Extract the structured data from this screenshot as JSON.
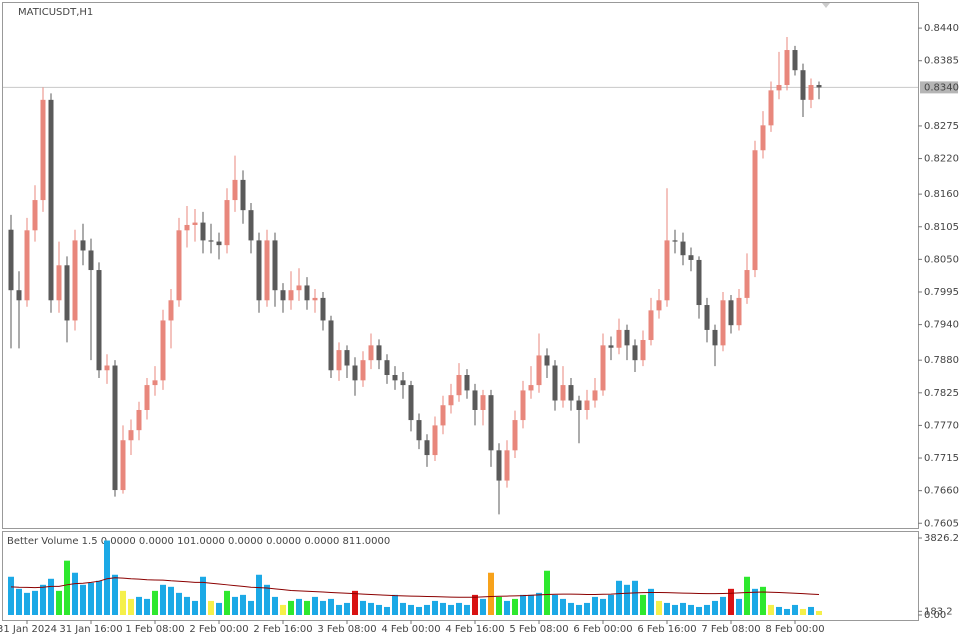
{
  "chart_data": [
    {
      "type": "candlestick",
      "title": "MATICUSDT,H1",
      "categories": [
        null,
        null,
        "31 Jan 2024",
        null,
        null,
        null,
        null,
        null,
        null,
        null,
        "31 Jan 16:00",
        null,
        null,
        null,
        null,
        null,
        null,
        null,
        "1 Feb 08:00",
        null,
        null,
        null,
        null,
        null,
        null,
        null,
        "2 Feb 00:00",
        null,
        null,
        null,
        null,
        null,
        null,
        null,
        "2 Feb 16:00",
        null,
        null,
        null,
        null,
        null,
        null,
        null,
        "3 Feb 08:00",
        null,
        null,
        null,
        null,
        null,
        null,
        null,
        "4 Feb 00:00",
        null,
        null,
        null,
        null,
        null,
        null,
        null,
        "4 Feb 16:00",
        null,
        null,
        null,
        null,
        null,
        null,
        null,
        "5 Feb 08:00",
        null,
        null,
        null,
        null,
        null,
        null,
        null,
        "6 Feb 00:00",
        null,
        null,
        null,
        null,
        null,
        null,
        null,
        "6 Feb 16:00",
        null,
        null,
        null,
        null,
        null,
        null,
        null,
        "7 Feb 08:00",
        null,
        null,
        null,
        null,
        null,
        null,
        null,
        "8 Feb 00:00",
        null,
        null,
        null
      ],
      "ohlc": [
        [
          0.81,
          0.8125,
          0.79,
          0.7998
        ],
        [
          0.7998,
          0.803,
          0.79,
          0.7981
        ],
        [
          0.7981,
          0.812,
          0.797,
          0.8099
        ],
        [
          0.8099,
          0.8175,
          0.808,
          0.815
        ],
        [
          0.815,
          0.834,
          0.813,
          0.8319
        ],
        [
          0.8319,
          0.833,
          0.796,
          0.7981
        ],
        [
          0.7981,
          0.808,
          0.796,
          0.804
        ],
        [
          0.804,
          0.8055,
          0.791,
          0.7947
        ],
        [
          0.7947,
          0.81,
          0.793,
          0.8082
        ],
        [
          0.8082,
          0.811,
          0.804,
          0.8065
        ],
        [
          0.8065,
          0.8085,
          0.788,
          0.8032
        ],
        [
          0.8032,
          0.8045,
          0.785,
          0.7863
        ],
        [
          0.7863,
          0.789,
          0.784,
          0.7871
        ],
        [
          0.7871,
          0.788,
          0.765,
          0.7661
        ],
        [
          0.7661,
          0.777,
          0.7655,
          0.7745
        ],
        [
          0.7745,
          0.778,
          0.772,
          0.7762
        ],
        [
          0.7762,
          0.781,
          0.7745,
          0.7796
        ],
        [
          0.7796,
          0.785,
          0.778,
          0.7838
        ],
        [
          0.7838,
          0.787,
          0.782,
          0.7846
        ],
        [
          0.7846,
          0.7965,
          0.783,
          0.7947
        ],
        [
          0.7947,
          0.8,
          0.79,
          0.7981
        ],
        [
          0.7981,
          0.812,
          0.797,
          0.8099
        ],
        [
          0.8099,
          0.814,
          0.807,
          0.8108
        ],
        [
          0.8108,
          0.8135,
          0.808,
          0.8112
        ],
        [
          0.8112,
          0.813,
          0.806,
          0.8082
        ],
        [
          0.8082,
          0.811,
          0.806,
          0.808
        ],
        [
          0.808,
          0.8095,
          0.805,
          0.8074
        ],
        [
          0.8074,
          0.817,
          0.806,
          0.815
        ],
        [
          0.815,
          0.8225,
          0.813,
          0.8184
        ],
        [
          0.8184,
          0.82,
          0.811,
          0.8133
        ],
        [
          0.8133,
          0.8145,
          0.806,
          0.8082
        ],
        [
          0.8082,
          0.8095,
          0.796,
          0.7981
        ],
        [
          0.7981,
          0.81,
          0.797,
          0.8082
        ],
        [
          0.8082,
          0.8095,
          0.797,
          0.7998
        ],
        [
          0.7998,
          0.801,
          0.796,
          0.7981
        ],
        [
          0.7981,
          0.803,
          0.7965,
          0.7998
        ],
        [
          0.7998,
          0.8035,
          0.798,
          0.8006
        ],
        [
          0.8006,
          0.802,
          0.7965,
          0.7981
        ],
        [
          0.7981,
          0.8,
          0.796,
          0.7985
        ],
        [
          0.7985,
          0.7995,
          0.793,
          0.7947
        ],
        [
          0.7947,
          0.7955,
          0.785,
          0.7863
        ],
        [
          0.7863,
          0.791,
          0.7845,
          0.7897
        ],
        [
          0.7897,
          0.7905,
          0.785,
          0.7871
        ],
        [
          0.7871,
          0.7885,
          0.782,
          0.7846
        ],
        [
          0.7846,
          0.7895,
          0.7835,
          0.788
        ],
        [
          0.788,
          0.7925,
          0.7865,
          0.7905
        ],
        [
          0.7905,
          0.7915,
          0.7865,
          0.788
        ],
        [
          0.788,
          0.789,
          0.784,
          0.7855
        ],
        [
          0.7855,
          0.787,
          0.783,
          0.7846
        ],
        [
          0.7846,
          0.786,
          0.7815,
          0.7838
        ],
        [
          0.7838,
          0.7845,
          0.776,
          0.7779
        ],
        [
          0.7779,
          0.779,
          0.773,
          0.7745
        ],
        [
          0.7745,
          0.7755,
          0.77,
          0.772
        ],
        [
          0.772,
          0.7785,
          0.771,
          0.777
        ],
        [
          0.777,
          0.782,
          0.7755,
          0.7804
        ],
        [
          0.7804,
          0.784,
          0.779,
          0.7821
        ],
        [
          0.7821,
          0.7875,
          0.781,
          0.7855
        ],
        [
          0.7855,
          0.7865,
          0.7815,
          0.7829
        ],
        [
          0.7829,
          0.784,
          0.777,
          0.7796
        ],
        [
          0.7796,
          0.783,
          0.777,
          0.7821
        ],
        [
          0.7821,
          0.783,
          0.77,
          0.7728
        ],
        [
          0.7728,
          0.774,
          0.762,
          0.7677
        ],
        [
          0.7677,
          0.7745,
          0.7665,
          0.7728
        ],
        [
          0.7728,
          0.7795,
          0.7715,
          0.7779
        ],
        [
          0.7779,
          0.7845,
          0.7765,
          0.7829
        ],
        [
          0.7829,
          0.787,
          0.7815,
          0.7838
        ],
        [
          0.7838,
          0.7925,
          0.7825,
          0.7888
        ],
        [
          0.7888,
          0.79,
          0.785,
          0.7871
        ],
        [
          0.7871,
          0.788,
          0.7795,
          0.7812
        ],
        [
          0.7812,
          0.787,
          0.78,
          0.7838
        ],
        [
          0.7838,
          0.785,
          0.7795,
          0.7812
        ],
        [
          0.7812,
          0.782,
          0.774,
          0.7796
        ],
        [
          0.7796,
          0.783,
          0.778,
          0.7812
        ],
        [
          0.7812,
          0.785,
          0.78,
          0.7829
        ],
        [
          0.7829,
          0.7925,
          0.782,
          0.7905
        ],
        [
          0.7905,
          0.792,
          0.788,
          0.7901
        ],
        [
          0.7901,
          0.795,
          0.789,
          0.7931
        ],
        [
          0.7931,
          0.794,
          0.788,
          0.7905
        ],
        [
          0.7905,
          0.7915,
          0.786,
          0.788
        ],
        [
          0.788,
          0.793,
          0.787,
          0.7914
        ],
        [
          0.7914,
          0.7985,
          0.7905,
          0.7964
        ],
        [
          0.7964,
          0.8,
          0.795,
          0.7981
        ],
        [
          0.7981,
          0.817,
          0.797,
          0.8082
        ],
        [
          0.8082,
          0.81,
          0.806,
          0.808
        ],
        [
          0.808,
          0.8095,
          0.804,
          0.8057
        ],
        [
          0.8057,
          0.807,
          0.803,
          0.8049
        ],
        [
          0.8049,
          0.8055,
          0.795,
          0.7973
        ],
        [
          0.7973,
          0.7985,
          0.791,
          0.7931
        ],
        [
          0.7931,
          0.794,
          0.787,
          0.7905
        ],
        [
          0.7905,
          0.7995,
          0.7895,
          0.7981
        ],
        [
          0.7981,
          0.799,
          0.7925,
          0.7939
        ],
        [
          0.7939,
          0.8,
          0.793,
          0.7985
        ],
        [
          0.7985,
          0.806,
          0.7975,
          0.8032
        ],
        [
          0.8032,
          0.825,
          0.802,
          0.8234
        ],
        [
          0.8234,
          0.83,
          0.822,
          0.8276
        ],
        [
          0.8276,
          0.835,
          0.8265,
          0.8335
        ],
        [
          0.8335,
          0.84,
          0.832,
          0.8344
        ],
        [
          0.8344,
          0.8425,
          0.8335,
          0.8403
        ],
        [
          0.8403,
          0.841,
          0.836,
          0.8369
        ],
        [
          0.8369,
          0.838,
          0.829,
          0.8319
        ],
        [
          0.8319,
          0.8355,
          0.8305,
          0.8344
        ],
        [
          0.8344,
          0.835,
          0.832,
          0.834
        ]
      ],
      "up_color": "#e8877c",
      "down_color": "#5a5a5a",
      "ylim": [
        0.7597,
        0.8484
      ],
      "yticks": [
        {
          "value": 0.844,
          "label": "0.8440"
        },
        {
          "value": 0.8385,
          "label": "0.8385"
        },
        {
          "value": 0.8275,
          "label": "0.8275"
        },
        {
          "value": 0.822,
          "label": "0.8220"
        },
        {
          "value": 0.816,
          "label": "0.8160"
        },
        {
          "value": 0.8105,
          "label": "0.8105"
        },
        {
          "value": 0.805,
          "label": "0.8050"
        },
        {
          "value": 0.7995,
          "label": "0.7995"
        },
        {
          "value": 0.794,
          "label": "0.7940"
        },
        {
          "value": 0.788,
          "label": "0.7880"
        },
        {
          "value": 0.7825,
          "label": "0.7825"
        },
        {
          "value": 0.777,
          "label": "0.7770"
        },
        {
          "value": 0.7715,
          "label": "0.7715"
        },
        {
          "value": 0.766,
          "label": "0.7660"
        },
        {
          "value": 0.7605,
          "label": "0.7605"
        }
      ],
      "current_price": {
        "value": 0.834,
        "label": "0.8340"
      }
    },
    {
      "type": "volume",
      "title": "Better Volume 1.5 0.0000 0.0000 101.0000 0.0000 0.0000 0.0000 811.0000",
      "values": [
        1900,
        1300,
        1100,
        1200,
        1500,
        1800,
        1200,
        2700,
        2100,
        1500,
        1600,
        1700,
        3700,
        2000,
        1200,
        800,
        900,
        800,
        1200,
        1500,
        1400,
        1100,
        900,
        700,
        1900,
        700,
        600,
        1200,
        900,
        1000,
        700,
        2000,
        1500,
        900,
        500,
        700,
        800,
        700,
        900,
        700,
        800,
        500,
        600,
        1200,
        700,
        600,
        500,
        400,
        1000,
        600,
        500,
        400,
        500,
        700,
        600,
        500,
        600,
        500,
        1000,
        800,
        2100,
        900,
        700,
        800,
        1000,
        1000,
        1100,
        2200,
        1000,
        800,
        600,
        500,
        600,
        900,
        800,
        1000,
        1700,
        1500,
        1700,
        1000,
        1300,
        700,
        600,
        500,
        600,
        500,
        400,
        500,
        700,
        900,
        1300,
        800,
        1900,
        1300,
        1400,
        500,
        400,
        300,
        500,
        300,
        400,
        200
      ],
      "colors": [
        "#1ca9e6",
        "#1ca9e6",
        "#1ca9e6",
        "#1ca9e6",
        "#1ca9e6",
        "#1ca9e6",
        "#2ee82e",
        "#2ee82e",
        "#1ca9e6",
        "#1ca9e6",
        "#1ca9e6",
        "#1ca9e6",
        "#1ca9e6",
        "#1ca9e6",
        "#f5f04a",
        "#f5f04a",
        "#1ca9e6",
        "#1ca9e6",
        "#2ee82e",
        "#1ca9e6",
        "#1ca9e6",
        "#1ca9e6",
        "#1ca9e6",
        "#1ca9e6",
        "#1ca9e6",
        "#f5f04a",
        "#1ca9e6",
        "#2ee82e",
        "#1ca9e6",
        "#1ca9e6",
        "#1ca9e6",
        "#1ca9e6",
        "#1ca9e6",
        "#1ca9e6",
        "#f5f04a",
        "#2ee82e",
        "#1ca9e6",
        "#2ee82e",
        "#1ca9e6",
        "#1ca9e6",
        "#1ca9e6",
        "#1ca9e6",
        "#1ca9e6",
        "#d91313",
        "#1ca9e6",
        "#1ca9e6",
        "#1ca9e6",
        "#1ca9e6",
        "#1ca9e6",
        "#1ca9e6",
        "#1ca9e6",
        "#1ca9e6",
        "#1ca9e6",
        "#1ca9e6",
        "#1ca9e6",
        "#1ca9e6",
        "#1ca9e6",
        "#1ca9e6",
        "#d91313",
        "#1ca9e6",
        "#f7a21b",
        "#2ee82e",
        "#1ca9e6",
        "#2ee82e",
        "#1ca9e6",
        "#1ca9e6",
        "#1ca9e6",
        "#2ee82e",
        "#1ca9e6",
        "#1ca9e6",
        "#1ca9e6",
        "#1ca9e6",
        "#1ca9e6",
        "#1ca9e6",
        "#1ca9e6",
        "#1ca9e6",
        "#1ca9e6",
        "#1ca9e6",
        "#1ca9e6",
        "#2ee82e",
        "#1ca9e6",
        "#f5f04a",
        "#1ca9e6",
        "#1ca9e6",
        "#1ca9e6",
        "#1ca9e6",
        "#1ca9e6",
        "#1ca9e6",
        "#1ca9e6",
        "#1ca9e6",
        "#d91313",
        "#1ca9e6",
        "#2ee82e",
        "#1ca9e6",
        "#2ee82e",
        "#f5f04a",
        "#1ca9e6",
        "#1ca9e6",
        "#1ca9e6",
        "#f5f04a",
        "#1ca9e6",
        "#f5f04a"
      ],
      "ma": {
        "color": "#8b0000",
        "values": [
          1400,
          1380,
          1370,
          1360,
          1380,
          1420,
          1420,
          1500,
          1560,
          1580,
          1620,
          1680,
          1800,
          1850,
          1830,
          1800,
          1780,
          1750,
          1740,
          1730,
          1700,
          1680,
          1650,
          1620,
          1620,
          1580,
          1540,
          1500,
          1460,
          1420,
          1380,
          1360,
          1340,
          1300,
          1260,
          1220,
          1200,
          1180,
          1160,
          1140,
          1120,
          1100,
          1080,
          1060,
          1040,
          1020,
          1000,
          980,
          960,
          950,
          940,
          930,
          920,
          910,
          900,
          890,
          880,
          880,
          880,
          900,
          920,
          930,
          940,
          950,
          960,
          980,
          1000,
          1020,
          1030,
          1040,
          1040,
          1030,
          1020,
          1020,
          1030,
          1040,
          1060,
          1080,
          1100,
          1110,
          1120,
          1120,
          1110,
          1100,
          1090,
          1080,
          1070,
          1060,
          1060,
          1070,
          1080,
          1100,
          1120,
          1130,
          1140,
          1130,
          1120,
          1100,
          1080,
          1060,
          1040,
          1020
        ]
      },
      "ylim": [
        0,
        3826.2
      ],
      "yticks": [
        3826.2,
        183.2,
        {
          "value": 0,
          "label": "0.00"
        }
      ]
    }
  ]
}
